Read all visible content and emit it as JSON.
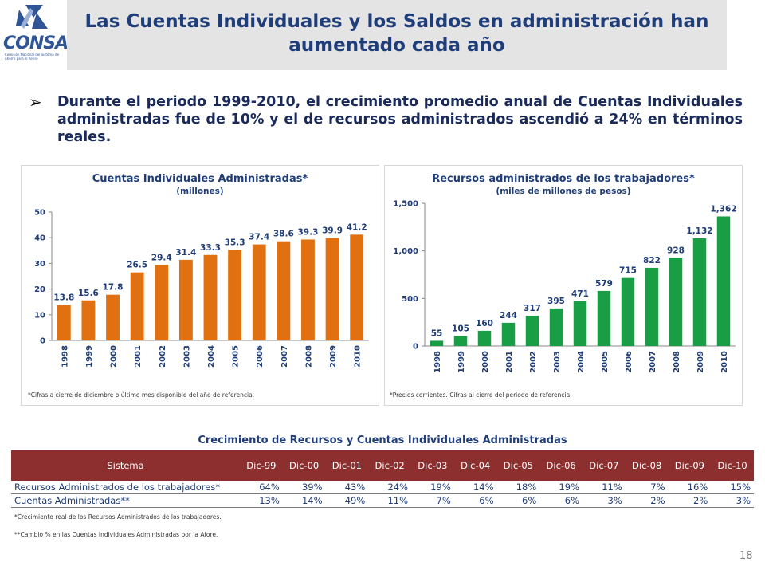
{
  "header": {
    "logo_text": "CONSAR",
    "logo_subtext": "Comisión Nacional del Sistema de Ahorro para el Retiro",
    "title_line1": "Las Cuentas Individuales y los Saldos en administración han",
    "title_line2": "aumentado cada año"
  },
  "bullet": {
    "text": "Durante el periodo 1999-2010, el crecimiento promedio anual de Cuentas Individuales administradas fue de 10% y el de recursos administrados ascendió a 24% en términos reales."
  },
  "colors": {
    "bar_left": "#e07010",
    "bar_right": "#1a9e45",
    "header_table": "#8d2f2f",
    "title": "#1f3d78"
  },
  "chart_data": [
    {
      "type": "bar",
      "title": "Cuentas Individuales Administradas*",
      "subtitle": "(millones)",
      "categories": [
        "1998",
        "1999",
        "2000",
        "2001",
        "2002",
        "2003",
        "2004",
        "2005",
        "2006",
        "2007",
        "2008",
        "2009",
        "2010"
      ],
      "values": [
        13.8,
        15.6,
        17.8,
        26.5,
        29.4,
        31.4,
        33.3,
        35.3,
        37.4,
        38.6,
        39.3,
        39.9,
        41.2
      ],
      "labels": [
        "13.8",
        "15.6",
        "17.8",
        "26.5",
        "29.4",
        "31.4",
        "33.3",
        "35.3",
        "37.4",
        "38.6",
        "39.3",
        "39.9",
        "41.2"
      ],
      "ylim": [
        0,
        50
      ],
      "yticks": [
        "0",
        "10",
        "20",
        "30",
        "40",
        "50"
      ],
      "ytick_values": [
        0,
        10,
        20,
        30,
        40,
        50
      ],
      "note": "*Cifras a cierre de diciembre o último mes disponible del año de referencia."
    },
    {
      "type": "bar",
      "title": "Recursos administrados de los trabajadores*",
      "subtitle": "(miles de millones de pesos)",
      "categories": [
        "1998",
        "1999",
        "2000",
        "2001",
        "2002",
        "2003",
        "2004",
        "2005",
        "2006",
        "2007",
        "2008",
        "2009",
        "2010"
      ],
      "values": [
        55,
        105,
        160,
        244,
        317,
        395,
        471,
        579,
        715,
        822,
        928,
        1132,
        1362
      ],
      "labels": [
        "55",
        "105",
        "160",
        "244",
        "317",
        "395",
        "471",
        "579",
        "715",
        "822",
        "928",
        "1,132",
        "1,362"
      ],
      "ylim": [
        0,
        1500
      ],
      "yticks": [
        "0",
        "500",
        "1,000",
        "1,500"
      ],
      "ytick_values": [
        0,
        500,
        1000,
        1500
      ],
      "note": "*Precios corrientes. Cifras al cierre del periodo de referencia."
    }
  ],
  "table": {
    "title": "Crecimiento de Recursos y Cuentas Individuales Administradas",
    "header_label": "Sistema",
    "columns": [
      "Dic-99",
      "Dic-00",
      "Dic-01",
      "Dic-02",
      "Dic-03",
      "Dic-04",
      "Dic-05",
      "Dic-06",
      "Dic-07",
      "Dic-08",
      "Dic-09",
      "Dic-10"
    ],
    "rows": [
      {
        "label": "Recursos Administrados de los trabajadores*",
        "values": [
          "64%",
          "39%",
          "43%",
          "24%",
          "19%",
          "14%",
          "18%",
          "19%",
          "11%",
          "7%",
          "16%",
          "15%"
        ]
      },
      {
        "label": "Cuentas Administradas**",
        "values": [
          "13%",
          "14%",
          "49%",
          "11%",
          "7%",
          "6%",
          "6%",
          "6%",
          "3%",
          "2%",
          "2%",
          "3%"
        ]
      }
    ],
    "note1": "*Crecimiento real de los Recursos Administrados de los trabajadores.",
    "note2": "**Cambio % en las Cuentas Individuales Administradas por la Afore."
  },
  "page_number": "18"
}
